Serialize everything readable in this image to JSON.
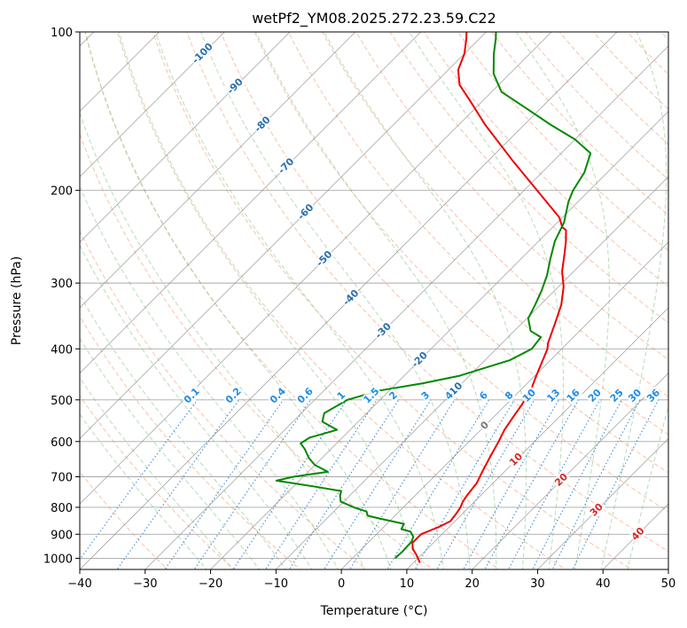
{
  "chart_data": {
    "type": "line",
    "title": "wetPf2_YM08.2025.272.23.59.C22",
    "xlabel": "Temperature (°C)",
    "ylabel": "Pressure (hPa)",
    "xlim": [
      -40,
      50
    ],
    "ylim": [
      1050,
      100
    ],
    "y_scale": "log",
    "grid": true,
    "x_ticks": [
      -40,
      -30,
      -20,
      -10,
      0,
      10,
      20,
      30,
      40,
      50
    ],
    "x_tick_labels": [
      "−40",
      "−30",
      "−20",
      "−10",
      "0",
      "10",
      "20",
      "30",
      "40",
      "50"
    ],
    "y_ticks": [
      1000,
      900,
      800,
      700,
      600,
      500,
      400,
      300,
      200,
      100
    ],
    "y_tick_labels": [
      "1000",
      "900",
      "800",
      "700",
      "600",
      "500",
      "400",
      "300",
      "200",
      "100"
    ],
    "skew": 45,
    "series": [
      {
        "color": "#ee0000",
        "points": [
          [
            11,
            1020
          ],
          [
            9.5,
            990
          ],
          [
            7.8,
            960
          ],
          [
            6.8,
            935
          ],
          [
            6.8,
            900
          ],
          [
            8.5,
            870
          ],
          [
            9.3,
            850
          ],
          [
            9,
            820
          ],
          [
            8.7,
            800
          ],
          [
            8.2,
            780
          ],
          [
            7.9,
            760
          ],
          [
            7.5,
            720
          ],
          [
            6.5,
            680
          ],
          [
            5.5,
            640
          ],
          [
            4.5,
            600
          ],
          [
            3.6,
            570
          ],
          [
            3,
            540
          ],
          [
            2.4,
            510
          ],
          [
            1.6,
            480
          ],
          [
            0.2,
            450
          ],
          [
            -1.2,
            420
          ],
          [
            -2.2,
            400
          ],
          [
            -3,
            390
          ],
          [
            -4.8,
            360
          ],
          [
            -6.8,
            330
          ],
          [
            -9.2,
            305
          ],
          [
            -11.8,
            285
          ],
          [
            -14,
            265
          ],
          [
            -15.8,
            250
          ],
          [
            -17.5,
            238
          ],
          [
            -18.5,
            235
          ],
          [
            -20.5,
            225
          ],
          [
            -28,
            200
          ],
          [
            -36.5,
            175
          ],
          [
            -46,
            150
          ],
          [
            -52,
            135
          ],
          [
            -56,
            126
          ],
          [
            -58.5,
            118
          ],
          [
            -60,
            110
          ],
          [
            -62,
            103
          ],
          [
            -63,
            100
          ]
        ]
      },
      {
        "color": "#008800",
        "points": [
          [
            6.5,
            1000
          ],
          [
            6.6,
            970
          ],
          [
            6.5,
            930
          ],
          [
            6,
            910
          ],
          [
            4.8,
            890
          ],
          [
            3,
            880
          ],
          [
            2.6,
            860
          ],
          [
            -2,
            840
          ],
          [
            -4.2,
            830
          ],
          [
            -5,
            815
          ],
          [
            -7.6,
            800
          ],
          [
            -10.5,
            780
          ],
          [
            -11.5,
            760
          ],
          [
            -12,
            745
          ],
          [
            -17,
            730
          ],
          [
            -23.5,
            712
          ],
          [
            -21.5,
            700
          ],
          [
            -17,
            685
          ],
          [
            -20,
            665
          ],
          [
            -22,
            645
          ],
          [
            -24,
            620
          ],
          [
            -25.5,
            605
          ],
          [
            -25,
            590
          ],
          [
            -22,
            570
          ],
          [
            -25.5,
            550
          ],
          [
            -26.5,
            530
          ],
          [
            -25,
            500
          ],
          [
            -21.5,
            480
          ],
          [
            -16,
            465
          ],
          [
            -11.5,
            450
          ],
          [
            -6.2,
            420
          ],
          [
            -4.6,
            400
          ],
          [
            -5,
            380
          ],
          [
            -7.5,
            370
          ],
          [
            -9.8,
            350
          ],
          [
            -10.8,
            330
          ],
          [
            -12,
            310
          ],
          [
            -13.5,
            290
          ],
          [
            -15.5,
            270
          ],
          [
            -17.5,
            250
          ],
          [
            -19,
            230
          ],
          [
            -21.5,
            210
          ],
          [
            -22.5,
            200
          ],
          [
            -23.5,
            185
          ],
          [
            -25.5,
            170
          ],
          [
            -30,
            160
          ],
          [
            -36,
            150
          ],
          [
            -42,
            140
          ],
          [
            -48.5,
            130
          ],
          [
            -52.5,
            120
          ],
          [
            -55.5,
            110
          ],
          [
            -57.5,
            103
          ],
          [
            -58.5,
            100
          ]
        ]
      }
    ],
    "dry_adiabat_labels": [
      {
        "text": "-100",
        "t": -100,
        "p": 110
      },
      {
        "text": "-90",
        "t": -90,
        "p": 127
      },
      {
        "text": "-80",
        "t": -80,
        "p": 150
      },
      {
        "text": "-70",
        "t": -70,
        "p": 180
      },
      {
        "text": "-60",
        "t": -60,
        "p": 220
      },
      {
        "text": "-50",
        "t": -50,
        "p": 270
      },
      {
        "text": "-40",
        "t": -40,
        "p": 320
      },
      {
        "text": "-30",
        "t": -30,
        "p": 370
      },
      {
        "text": "-20",
        "t": -20,
        "p": 420
      },
      {
        "text": "-10",
        "t": -10,
        "p": 480
      }
    ],
    "mixing_ratio_labels": [
      "0.1",
      "0.2",
      "0.4",
      "0.6",
      "1",
      "1.5",
      "2",
      "3",
      "4",
      "6",
      "8",
      "10",
      "13",
      "16",
      "20",
      "25",
      "30",
      "36"
    ],
    "moist_adiabat_labels": [
      {
        "text": "0",
        "t": 0,
        "p": 560,
        "color": "#777777"
      },
      {
        "text": "10",
        "t": 10,
        "p": 650,
        "color": "#d62728"
      },
      {
        "text": "20",
        "t": 20,
        "p": 710,
        "color": "#d62728"
      },
      {
        "text": "30",
        "t": 30,
        "p": 810,
        "color": "#d62728"
      },
      {
        "text": "40",
        "t": 40,
        "p": 900,
        "color": "#d62728"
      }
    ]
  }
}
